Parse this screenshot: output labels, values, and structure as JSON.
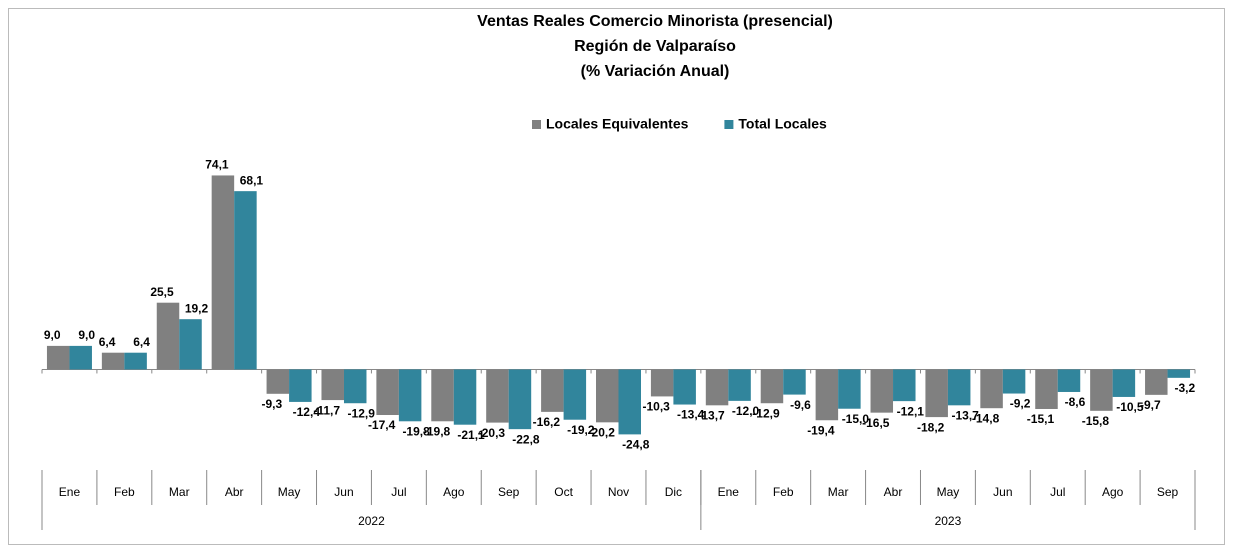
{
  "chart_data": {
    "type": "bar",
    "title": [
      "Ventas Reales Comercio Minorista (presencial)",
      "Región de Valparaíso",
      "(% Variación Anual)"
    ],
    "category_groups": [
      {
        "name": "2022",
        "categories": [
          "Ene",
          "Feb",
          "Mar",
          "Abr",
          "May",
          "Jun",
          "Jul",
          "Ago",
          "Sep",
          "Oct",
          "Nov",
          "Dic"
        ]
      },
      {
        "name": "2023",
        "categories": [
          "Ene",
          "Feb",
          "Mar",
          "Abr",
          "May",
          "Jun",
          "Jul",
          "Ago",
          "Sep"
        ]
      }
    ],
    "series": [
      {
        "name": "Locales Equivalentes",
        "color": "#808080",
        "values": [
          9.0,
          6.4,
          25.5,
          74.1,
          -9.3,
          -11.7,
          -17.4,
          -19.8,
          -20.3,
          -16.2,
          -20.2,
          -10.3,
          -13.7,
          -12.9,
          -19.4,
          -16.5,
          -18.2,
          -14.8,
          -15.1,
          -15.8,
          -9.7
        ],
        "value_labels": [
          "9,0",
          "6,4",
          "25,5",
          "74,1",
          "-9,3",
          "-11,7",
          "-17,4",
          "-19,8",
          "-20,3",
          "-16,2",
          "-20,2",
          "-10,3",
          "-13,7",
          "-12,9",
          "-19,4",
          "-16,5",
          "-18,2",
          "-14,8",
          "-15,1",
          "-15,8",
          "-9,7"
        ]
      },
      {
        "name": "Total Locales",
        "color": "#31859C",
        "values": [
          9.0,
          6.4,
          19.2,
          68.1,
          -12.4,
          -12.9,
          -19.8,
          -21.1,
          -22.8,
          -19.2,
          -24.8,
          -13.4,
          -12.0,
          -9.6,
          -15.0,
          -12.1,
          -13.7,
          -9.2,
          -8.6,
          -10.5,
          -3.2
        ],
        "value_labels": [
          "9,0",
          "6,4",
          "19,2",
          "68,1",
          "-12,4",
          "-12,9",
          "-19,8",
          "-21,1",
          "-22,8",
          "-19,2",
          "-24,8",
          "-13,4",
          "-12,0",
          "-9,6",
          "-15,0",
          "-12,1",
          "-13,7",
          "-9,2",
          "-8,6",
          "-10,5",
          "-3,2"
        ]
      }
    ],
    "ylim": [
      -30,
      80
    ],
    "legend": "top"
  }
}
